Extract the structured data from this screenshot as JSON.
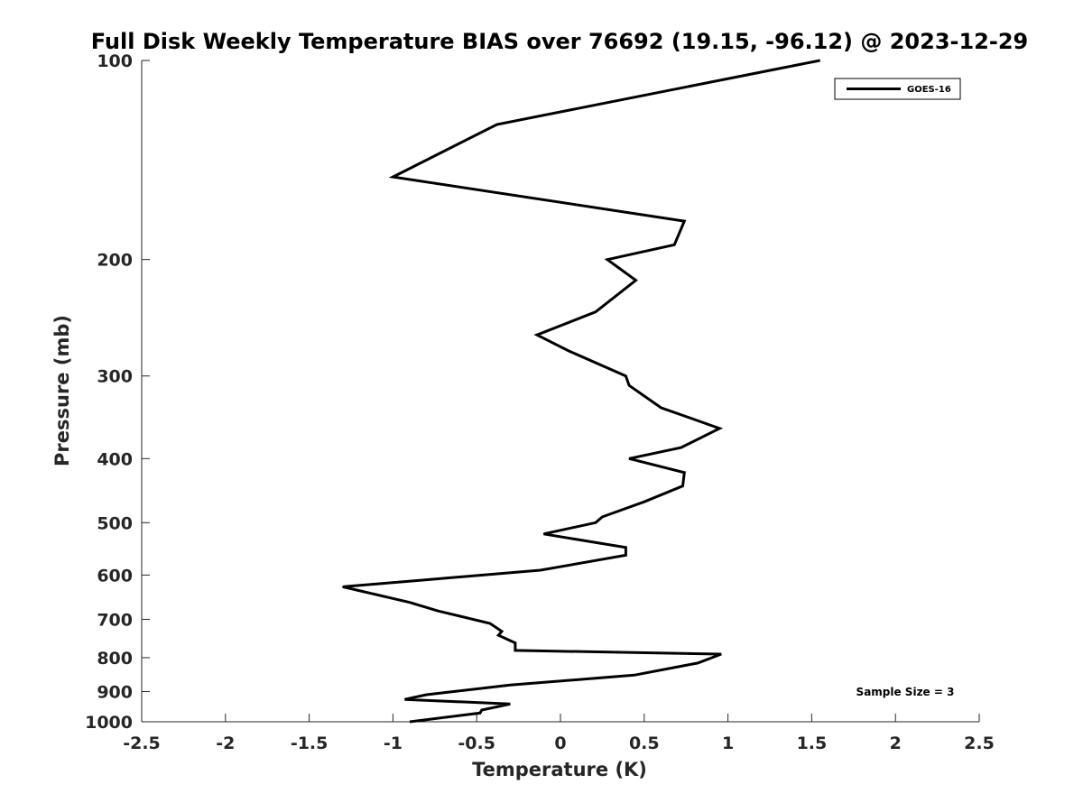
{
  "chart_data": {
    "type": "line",
    "title": "Full Disk Weekly Temperature BIAS over 76692 (19.15, -96.12) @ 2023-12-29",
    "xlabel": "Temperature (K)",
    "ylabel": "Pressure (mb)",
    "xlim": [
      -2.5,
      2.5
    ],
    "ylim": [
      1000,
      100
    ],
    "y_scale": "log",
    "y_reversed": true,
    "x_ticks": [
      "-2.5",
      "-2",
      "-1.5",
      "-1",
      "-0.5",
      "0",
      "0.5",
      "1",
      "1.5",
      "2",
      "2.5"
    ],
    "y_ticks": [
      "100",
      "200",
      "300",
      "400",
      "500",
      "600",
      "700",
      "800",
      "900",
      "1000"
    ],
    "grid": false,
    "legend": {
      "entries": [
        "GOES-16"
      ],
      "position": "top-right"
    },
    "annotations": [
      "Sample Size = 3"
    ],
    "series": [
      {
        "name": "GOES-16",
        "color": "#000000",
        "x": [
          1.55,
          -0.38,
          -1.0,
          0.74,
          0.68,
          0.28,
          0.45,
          0.21,
          -0.14,
          0.05,
          0.39,
          0.41,
          0.6,
          0.95,
          0.72,
          0.41,
          0.74,
          0.73,
          0.5,
          0.25,
          0.21,
          -0.1,
          0.39,
          0.39,
          -0.12,
          -0.8,
          -1.3,
          -0.9,
          -0.73,
          -0.42,
          -0.35,
          -0.37,
          -0.27,
          -0.27,
          0.96,
          0.82,
          0.44,
          -0.3,
          -0.8,
          -0.93,
          -0.3,
          -0.47,
          -0.48,
          -0.9
        ],
        "y": [
          100,
          125,
          150,
          175,
          190,
          200,
          215,
          240,
          260,
          275,
          300,
          310,
          335,
          360,
          385,
          400,
          420,
          440,
          465,
          490,
          500,
          520,
          545,
          560,
          590,
          610,
          625,
          660,
          680,
          710,
          730,
          740,
          760,
          780,
          790,
          815,
          850,
          880,
          910,
          925,
          940,
          960,
          970,
          1000
        ]
      }
    ]
  }
}
